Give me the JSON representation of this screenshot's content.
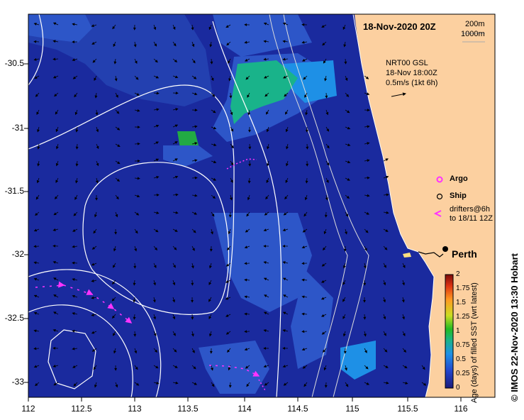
{
  "map": {
    "title": "18-Nov-2020 20Z",
    "scale": {
      "line1": "200m",
      "line2": "1000m"
    },
    "vector_info": [
      "NRT00 GSL",
      "18-Nov 18:00Z",
      "0.5m/s (1kt 6h)"
    ],
    "x_ticks": [
      "112",
      "112.5",
      "113",
      "113.5",
      "114",
      "114.5",
      "115",
      "115.5",
      "116"
    ],
    "y_ticks": [
      "-30.5",
      "-31",
      "-31.5",
      "-32",
      "-32.5",
      "-33"
    ],
    "legend": {
      "argo": "Argo",
      "ship": "Ship",
      "drifters_line1": "drifters@6h",
      "drifters_line2": "to 18/11 12Z"
    },
    "city": "Perth",
    "colorbar": {
      "title": "Age (days) of filled SST (wrt latest)",
      "ticks": [
        "0",
        "0.25",
        "0.5",
        "0.75",
        "1",
        "1.25",
        "1.5",
        "1.75",
        "2"
      ]
    },
    "credit": "© IMOS 22-Nov-2020 13:30 Hobart",
    "colors": {
      "ocean_deep": "#1a2a9e",
      "ocean_mid": "#2d56c8",
      "ocean_light": "#1e90e6",
      "ocean_teal": "#19b38a",
      "land": "#fcd0a0",
      "drifters": "#ff33ff"
    }
  }
}
